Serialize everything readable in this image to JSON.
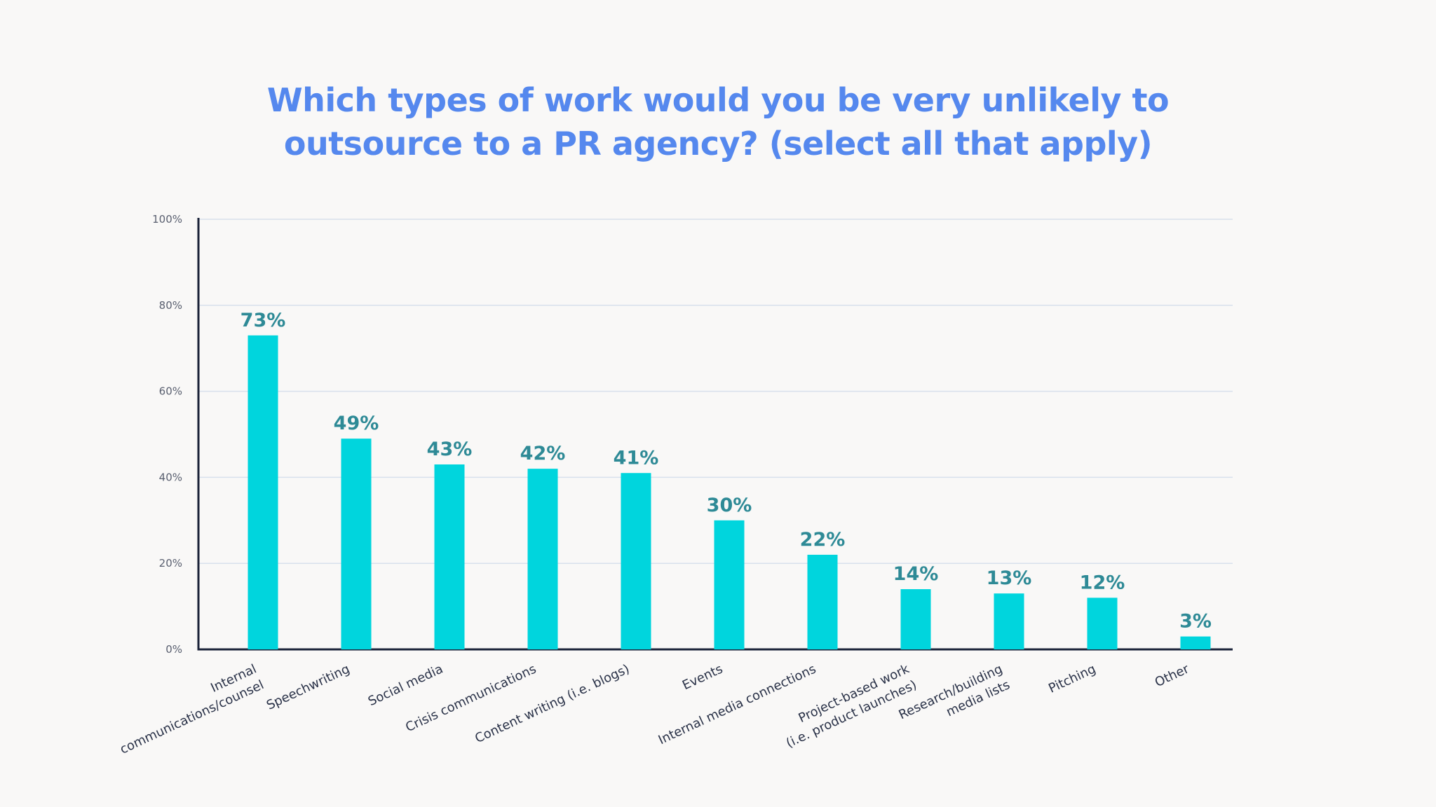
{
  "chart_data": {
    "type": "bar",
    "title": [
      "Which types of work would you be very unlikely to",
      "outsource to a PR agency? (select all that apply)"
    ],
    "xlabel": "",
    "ylabel": "",
    "ylim": [
      0,
      100
    ],
    "yticks": [
      0,
      20,
      40,
      60,
      80,
      100
    ],
    "ytick_labels": [
      "0%",
      "20%",
      "40%",
      "60%",
      "80%",
      "100%"
    ],
    "grid": true,
    "categories": [
      [
        "Internal",
        "communications/counsel"
      ],
      [
        "Speechwriting"
      ],
      [
        "Social media"
      ],
      [
        "Crisis communications"
      ],
      [
        "Content writing (i.e. blogs)"
      ],
      [
        "Events"
      ],
      [
        "Internal media connections"
      ],
      [
        "Project-based work",
        "(i.e. product launches)"
      ],
      [
        "Research/building",
        "media lists"
      ],
      [
        "Pitching"
      ],
      [
        "Other"
      ]
    ],
    "values": [
      73,
      49,
      43,
      42,
      41,
      30,
      22,
      14,
      13,
      12,
      3
    ],
    "value_labels": [
      "73%",
      "49%",
      "43%",
      "42%",
      "41%",
      "30%",
      "22%",
      "14%",
      "13%",
      "12%",
      "3%"
    ],
    "colors": {
      "bar": "#00d5dd",
      "value_label": "#2e8a96",
      "axis": "#1a2238",
      "grid": "#d8e0ec",
      "tick": "#5a6070"
    }
  }
}
